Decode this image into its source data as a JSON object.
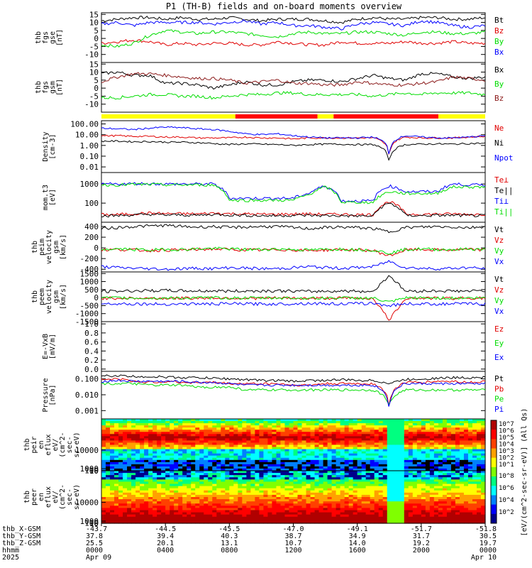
{
  "title": "P1 (TH-B) fields and on-board moments overview",
  "colors": {
    "black": "#000000",
    "red": "#e00000",
    "green": "#00dd00",
    "blue": "#0000ff",
    "darkred": "#8b1a1a",
    "yellow": "#ffff00",
    "brightred": "#ff0000",
    "darkblue": "#00008b"
  },
  "chart_data": [
    {
      "type": "line",
      "id": "fgs_gse",
      "ylabel_lines": [
        "thb",
        "fgs",
        "gse",
        "[nT]"
      ],
      "yticks": [
        15,
        10,
        5,
        0,
        -5,
        -10
      ],
      "ylim": [
        -15,
        16
      ],
      "series": [
        {
          "name": "Bt",
          "color": "black",
          "values": [
            11,
            12,
            13,
            13,
            12,
            13,
            12,
            12,
            13,
            12,
            11,
            12,
            12,
            12,
            11,
            10,
            12,
            13,
            12,
            12,
            13,
            13,
            12,
            12,
            13
          ]
        },
        {
          "name": "Bz",
          "color": "red",
          "values": [
            -3,
            -2,
            -1,
            -2,
            -4,
            -3,
            -4,
            -3,
            -3,
            -4,
            -4,
            -2,
            -3,
            -4,
            -4,
            -2,
            -3,
            -3,
            -3,
            -2,
            -3,
            -3,
            -2,
            -3,
            -3
          ]
        },
        {
          "name": "By",
          "color": "green",
          "values": [
            -4,
            -5,
            -3,
            2,
            5,
            4,
            3,
            4,
            4,
            3,
            2,
            1,
            3,
            4,
            3,
            3,
            4,
            4,
            3,
            2,
            4,
            4,
            3,
            3,
            4
          ]
        },
        {
          "name": "Bx",
          "color": "blue",
          "values": [
            9,
            10,
            8,
            10,
            10,
            10,
            10,
            9,
            10,
            11,
            9,
            10,
            8,
            8,
            7,
            6,
            9,
            10,
            9,
            8,
            11,
            10,
            8,
            7,
            8
          ]
        }
      ]
    },
    {
      "type": "line",
      "id": "fgs_gsm",
      "ylabel_lines": [
        "thb",
        "fgs",
        "gsm",
        "[nT]"
      ],
      "yticks": [
        15,
        10,
        5,
        0,
        -5,
        -10
      ],
      "ylim": [
        -15,
        16
      ],
      "series": [
        {
          "name": "Bx",
          "color": "black",
          "values": [
            9,
            10,
            8,
            8,
            3,
            3,
            2,
            0,
            2,
            4,
            2,
            2,
            4,
            5,
            5,
            4,
            6,
            8,
            6,
            5,
            9,
            9,
            7,
            6,
            7
          ]
        },
        {
          "name": "By",
          "color": "green",
          "values": [
            -6,
            -6,
            -5,
            -4,
            -4,
            -5,
            -5,
            -6,
            -5,
            -4,
            -4,
            -3,
            -3,
            -4,
            -4,
            -4,
            -4,
            -5,
            -4,
            -3,
            -4,
            -3,
            -3,
            -3,
            -4
          ]
        },
        {
          "name": "Bz",
          "color": "darkred",
          "values": [
            4,
            7,
            9,
            9,
            8,
            7,
            6,
            6,
            5,
            3,
            4,
            5,
            3,
            3,
            2,
            2,
            4,
            3,
            2,
            2,
            3,
            4,
            7,
            6,
            5
          ]
        }
      ]
    },
    {
      "type": "bar",
      "id": "mode_bar",
      "segments": [
        {
          "from": 0,
          "to": 0.349,
          "color": "yellow"
        },
        {
          "from": 0.349,
          "to": 0.563,
          "color": "brightred"
        },
        {
          "from": 0.563,
          "to": 0.605,
          "color": "yellow"
        },
        {
          "from": 0.605,
          "to": 0.878,
          "color": "brightred"
        },
        {
          "from": 0.878,
          "to": 1,
          "color": "yellow"
        }
      ]
    },
    {
      "type": "line",
      "id": "density",
      "scale": "log",
      "ylabel_lines": [
        "Density",
        "[cm-3]"
      ],
      "yticks": [
        100.0,
        10.0,
        1.0,
        0.1,
        0.01
      ],
      "ytick_labels": [
        "100.00",
        "10.00",
        "1.00",
        "0.10",
        "0.01"
      ],
      "ylim": [
        0.003,
        200
      ],
      "series": [
        {
          "name": "Ne",
          "color": "red",
          "values": [
            8,
            8,
            7,
            7,
            6,
            6,
            5,
            5,
            5,
            6,
            5,
            5,
            4,
            5,
            5,
            5,
            5,
            5,
            0.01,
            6,
            5,
            5,
            5,
            6,
            7
          ]
        },
        {
          "name": "Ni",
          "color": "black",
          "values": [
            2.5,
            2.5,
            2.2,
            2.3,
            2,
            2,
            1.8,
            1.5,
            1.2,
            1.4,
            1.3,
            1.2,
            1,
            1.2,
            1.3,
            1.3,
            1.2,
            1.2,
            0.005,
            1.2,
            1.3,
            1.4,
            1.3,
            1.5,
            1.6
          ]
        },
        {
          "name": "Npot",
          "color": "blue",
          "values": [
            40,
            35,
            30,
            40,
            50,
            45,
            35,
            30,
            20,
            12,
            10,
            12,
            8,
            6,
            5,
            5,
            5,
            6,
            0.01,
            8,
            6,
            5,
            5,
            6,
            8
          ]
        }
      ]
    },
    {
      "type": "line",
      "id": "temp",
      "scale": "log",
      "ylabel_lines": [
        "mom.t3",
        "[eV]"
      ],
      "yticks": [
        1000,
        100
      ],
      "ytick_labels": [
        "1000",
        "100"
      ],
      "ylim": [
        10,
        4000
      ],
      "series": [
        {
          "name": "Te⊥",
          "color": "red",
          "values": [
            25,
            25,
            28,
            30,
            28,
            28,
            27,
            30,
            28,
            27,
            26,
            26,
            27,
            27,
            26,
            26,
            25,
            25,
            120,
            27,
            26,
            27,
            27,
            26,
            26
          ]
        },
        {
          "name": "Te||",
          "color": "black",
          "values": [
            22,
            22,
            24,
            26,
            24,
            24,
            23,
            26,
            24,
            23,
            22,
            22,
            23,
            23,
            22,
            22,
            21,
            21,
            100,
            23,
            22,
            23,
            23,
            22,
            22
          ]
        },
        {
          "name": "Ti⊥",
          "color": "blue",
          "values": [
            1000,
            1000,
            1050,
            1050,
            1000,
            1000,
            1000,
            1000,
            180,
            180,
            180,
            180,
            180,
            330,
            800,
            130,
            130,
            130,
            800,
            400,
            400,
            400,
            1000,
            900,
            900
          ]
        },
        {
          "name": "Ti||",
          "color": "green",
          "values": [
            900,
            900,
            950,
            950,
            900,
            900,
            900,
            900,
            140,
            140,
            140,
            140,
            140,
            280,
            700,
            110,
            110,
            110,
            400,
            320,
            320,
            320,
            700,
            700,
            700
          ]
        }
      ]
    },
    {
      "type": "line",
      "id": "peim_vel",
      "ylabel_lines": [
        "thb",
        "peim",
        "velocity",
        "gsm",
        "[km/s]"
      ],
      "yticks": [
        400,
        200,
        0,
        -200,
        -400
      ],
      "ylim": [
        -450,
        480
      ],
      "series": [
        {
          "name": "Vt",
          "color": "black",
          "values": [
            360,
            380,
            400,
            410,
            420,
            400,
            390,
            400,
            380,
            390,
            400,
            400,
            380,
            360,
            380,
            390,
            380,
            360,
            300,
            380,
            390,
            400,
            390,
            380,
            400
          ]
        },
        {
          "name": "Vz",
          "color": "red",
          "values": [
            -40,
            -30,
            -40,
            -50,
            -40,
            -40,
            -30,
            -20,
            -30,
            -40,
            -40,
            -30,
            -40,
            -50,
            -40,
            -30,
            -40,
            -50,
            -150,
            -40,
            -30,
            -40,
            -40,
            -30,
            -40
          ]
        },
        {
          "name": "Vy",
          "color": "green",
          "values": [
            -30,
            -20,
            -30,
            -40,
            -30,
            -30,
            -20,
            -10,
            -20,
            -30,
            -30,
            -20,
            -30,
            -40,
            -30,
            -20,
            -30,
            -40,
            -100,
            -30,
            -20,
            -30,
            -30,
            -20,
            -30
          ]
        },
        {
          "name": "Vx",
          "color": "blue",
          "values": [
            -350,
            -370,
            -380,
            -390,
            -400,
            -390,
            -380,
            -390,
            -370,
            -380,
            -390,
            -390,
            -370,
            -350,
            -370,
            -380,
            -370,
            -350,
            -250,
            -370,
            -380,
            -390,
            -380,
            -370,
            -390
          ]
        }
      ]
    },
    {
      "type": "line",
      "id": "peem_vel",
      "ylabel_lines": [
        "thb",
        "peem",
        "velocity",
        "gsm",
        "[km/s]"
      ],
      "yticks": [
        1500,
        1000,
        500,
        0,
        -500,
        -1000,
        -1500
      ],
      "ylim": [
        -1500,
        1600
      ],
      "series": [
        {
          "name": "Vt",
          "color": "black",
          "values": [
            380,
            400,
            420,
            430,
            440,
            420,
            410,
            420,
            400,
            410,
            420,
            420,
            400,
            380,
            400,
            410,
            400,
            380,
            1400,
            400,
            410,
            420,
            410,
            400,
            420
          ]
        },
        {
          "name": "Vz",
          "color": "red",
          "values": [
            -40,
            -30,
            -40,
            -50,
            -40,
            -40,
            -30,
            -20,
            -30,
            -40,
            -40,
            -30,
            -40,
            -50,
            -40,
            -30,
            -40,
            -50,
            -1400,
            -40,
            -30,
            -40,
            -40,
            -30,
            -40
          ]
        },
        {
          "name": "Vy",
          "color": "green",
          "values": [
            -30,
            -20,
            -30,
            -40,
            -30,
            -30,
            -20,
            -10,
            -20,
            -30,
            -30,
            -20,
            -30,
            -40,
            -30,
            -20,
            -30,
            -40,
            -300,
            -30,
            -20,
            -30,
            -30,
            -20,
            -30
          ]
        },
        {
          "name": "Vx",
          "color": "blue",
          "values": [
            -370,
            -380,
            -390,
            -400,
            -410,
            -400,
            -390,
            -400,
            -380,
            -390,
            -400,
            -400,
            -380,
            -360,
            -380,
            -390,
            -380,
            -360,
            -500,
            -380,
            -390,
            -400,
            -390,
            -380,
            -400
          ]
        }
      ]
    },
    {
      "type": "line",
      "id": "efield",
      "ylabel_lines": [
        "E=-VxB",
        "[mV/m]"
      ],
      "yticks": [
        1.0,
        0.8,
        0.6,
        0.4,
        0.2,
        0.0
      ],
      "ytick_labels": [
        "1.0",
        "0.8",
        "0.6",
        "0.4",
        "0.2",
        "0.0"
      ],
      "ylim": [
        -0.05,
        1.05
      ],
      "series": [
        {
          "name": "Ez",
          "color": "red",
          "values": []
        },
        {
          "name": "Ey",
          "color": "green",
          "values": []
        },
        {
          "name": "Ex",
          "color": "blue",
          "values": []
        }
      ]
    },
    {
      "type": "line",
      "id": "pressure",
      "scale": "log",
      "ylabel_lines": [
        "Pressure",
        "[nPa]"
      ],
      "yticks": [
        0.1,
        0.01,
        0.001
      ],
      "ytick_labels": [
        "0.100",
        "0.010",
        "0.001"
      ],
      "ylim": [
        0.0003,
        0.3
      ],
      "series": [
        {
          "name": "Pt",
          "color": "black",
          "values": [
            0.15,
            0.16,
            0.14,
            0.14,
            0.13,
            0.12,
            0.12,
            0.11,
            0.1,
            0.09,
            0.08,
            0.08,
            0.07,
            0.08,
            0.08,
            0.09,
            0.08,
            0.08,
            0.05,
            0.09,
            0.1,
            0.11,
            0.12,
            0.12,
            0.13
          ]
        },
        {
          "name": "Pb",
          "color": "red",
          "values": [
            0.09,
            0.1,
            0.07,
            0.06,
            0.07,
            0.06,
            0.06,
            0.06,
            0.05,
            0.05,
            0.05,
            0.05,
            0.04,
            0.04,
            0.05,
            0.05,
            0.05,
            0.05,
            0.001,
            0.06,
            0.06,
            0.07,
            0.07,
            0.06,
            0.07
          ]
        },
        {
          "name": "Pe",
          "color": "green",
          "values": [
            0.05,
            0.05,
            0.05,
            0.04,
            0.04,
            0.04,
            0.03,
            0.03,
            0.03,
            0.02,
            0.02,
            0.02,
            0.02,
            0.02,
            0.02,
            0.02,
            0.02,
            0.02,
            0.002,
            0.02,
            0.02,
            0.02,
            0.02,
            0.02,
            0.02
          ]
        },
        {
          "name": "Pi",
          "color": "blue",
          "values": [
            0.07,
            0.08,
            0.07,
            0.07,
            0.07,
            0.07,
            0.06,
            0.06,
            0.05,
            0.04,
            0.04,
            0.04,
            0.04,
            0.04,
            0.04,
            0.04,
            0.04,
            0.04,
            0.001,
            0.05,
            0.05,
            0.05,
            0.05,
            0.05,
            0.05
          ]
        }
      ]
    },
    {
      "type": "heatmap",
      "id": "peir_eflux",
      "ylabel_lines": [
        "thb",
        "peir",
        "en",
        "eflux",
        "eV/",
        "(cm^2-",
        "sec-",
        "sr-eV)"
      ],
      "yticks": [
        10000,
        1000,
        100,
        10
      ],
      "ytick_labels": [
        "10000",
        "1000",
        "100",
        "10"
      ],
      "ylim": [
        5,
        25000
      ]
    },
    {
      "type": "heatmap",
      "id": "peer_eflux",
      "ylabel_lines": [
        "thb",
        "peer",
        "en",
        "eflux",
        "eV/",
        "(cm^2-",
        "sec-",
        "sr-eV)"
      ],
      "yticks": [
        10000,
        1000,
        100,
        10
      ],
      "ytick_labels": [
        "10000",
        "1000",
        "100",
        "10"
      ],
      "ylim": [
        5,
        25000
      ]
    }
  ],
  "colorbar": {
    "label": "[eV/(cm^2-sec-sr-eV)] (All Qs)",
    "ticks_top": [
      "10^7",
      "10^6",
      "10^5",
      "10^4",
      "10^3",
      "10^2",
      "10^1"
    ],
    "ticks_bottom": [
      "10^8",
      "10^6",
      "10^4",
      "10^2"
    ]
  },
  "xaxis": {
    "row_labels": [
      "thb_X-GSM",
      "thb_Y-GSM",
      "thb_Z-GSM",
      "hhmm",
      "2025"
    ],
    "columns": [
      [
        "-43.7",
        "37.8",
        "25.5",
        "0000",
        "Apr 09"
      ],
      [
        "-44.5",
        "39.4",
        "20.1",
        "0400",
        ""
      ],
      [
        "-45.5",
        "40.3",
        "13.1",
        "0800",
        ""
      ],
      [
        "-47.0",
        "38.7",
        "10.7",
        "1200",
        ""
      ],
      [
        "-49.1",
        "34.9",
        "14.0",
        "1600",
        ""
      ],
      [
        "-51.7",
        "31.7",
        "19.2",
        "2000",
        ""
      ],
      [
        "-51.8",
        "30.5",
        "19.7",
        "0000",
        "Apr 10"
      ]
    ]
  }
}
